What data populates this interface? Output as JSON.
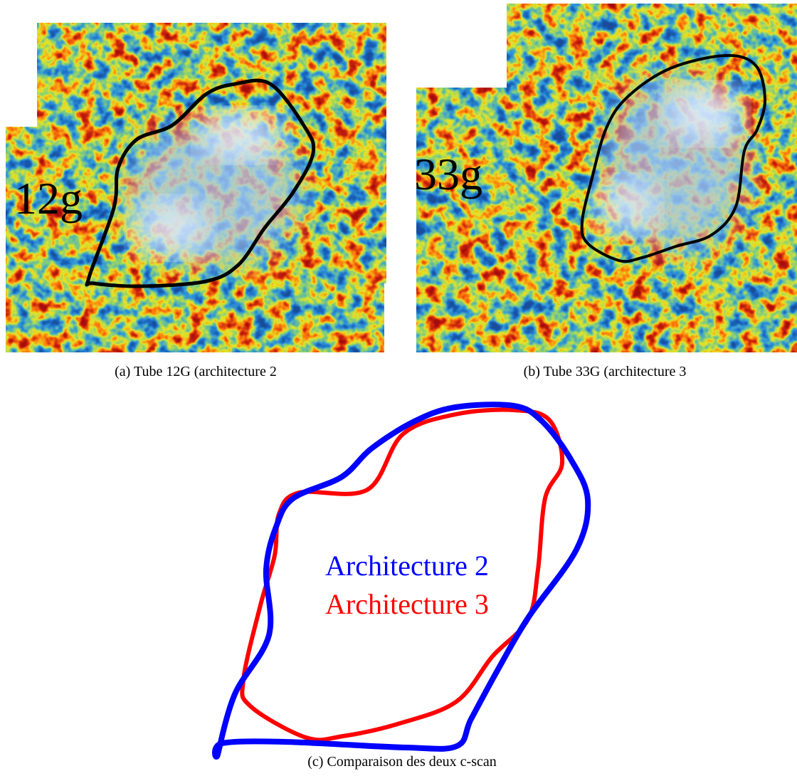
{
  "panels": [
    {
      "label": "12g",
      "caption": "(a) Tube 12G (architecture 2"
    },
    {
      "label": "33g",
      "caption": "(b) Tube 33G (architecture 3"
    }
  ],
  "comparison": {
    "legend": [
      "Architecture 2",
      "Architecture 3"
    ],
    "caption": "(c) Comparaison des deux c-scan"
  }
}
